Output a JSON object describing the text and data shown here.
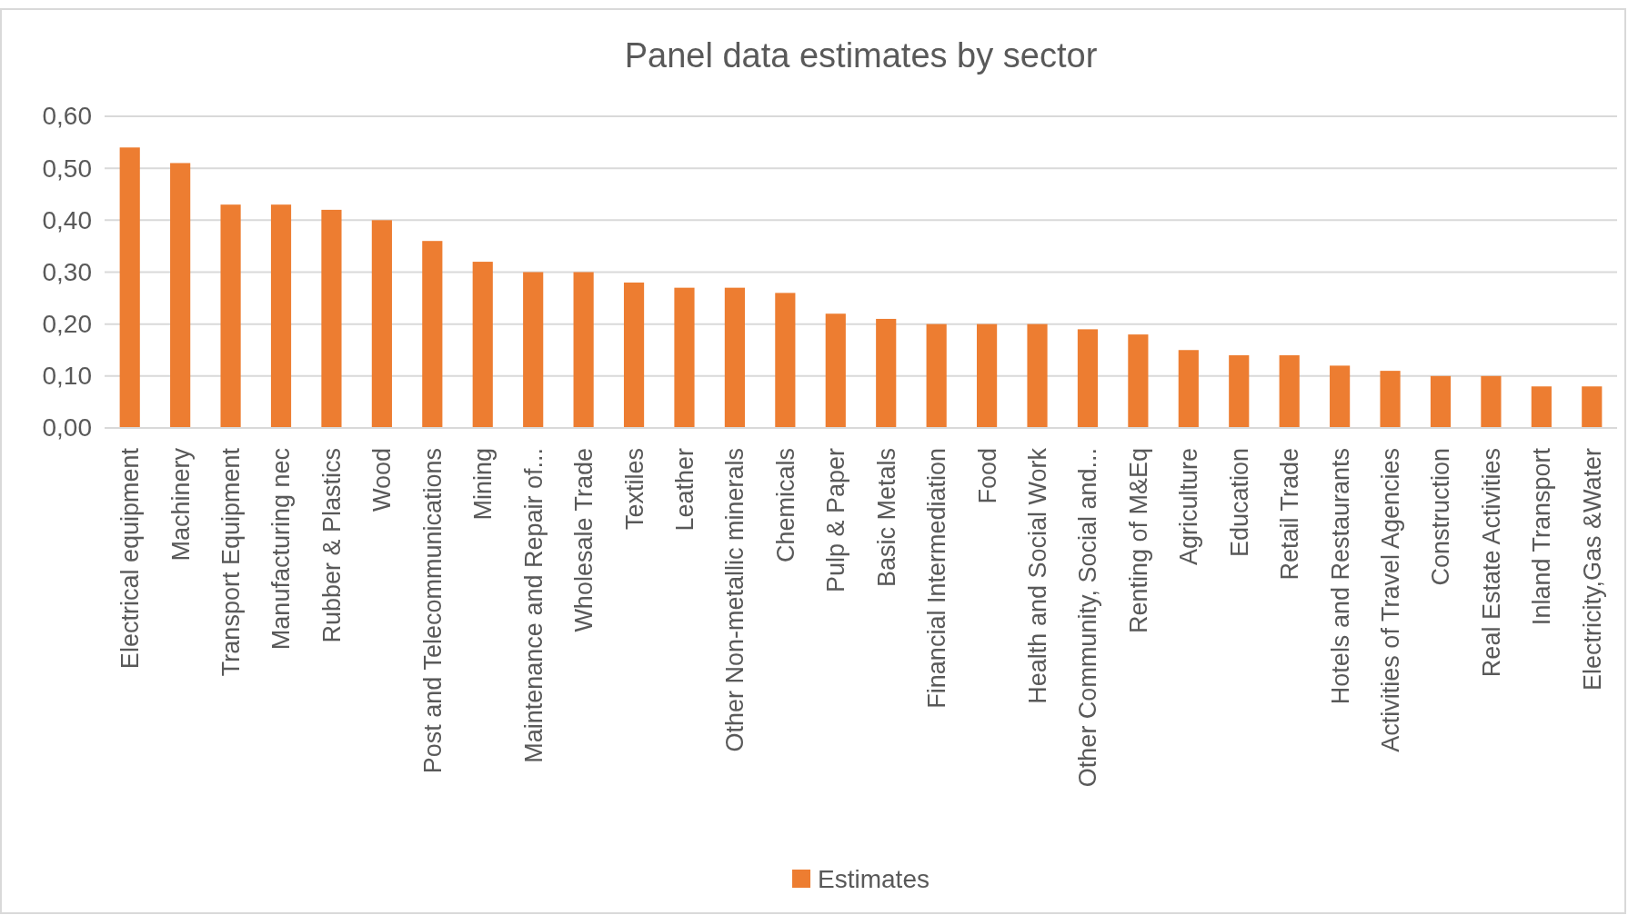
{
  "chart_data": {
    "type": "bar",
    "title": "Panel data estimates by sector",
    "categories": [
      "Electrical equipment",
      "Machinery",
      "Transport Equipment",
      "Manufacturing nec",
      "Rubber & Plastics",
      "Wood",
      "Post and Telecommunications",
      "Mining",
      "Maintenance and Repair of...",
      "Wholesale Trade",
      "Textiles",
      "Leather",
      "Other Non-metallic minerals",
      "Chemicals",
      "Pulp & Paper",
      "Basic Metals",
      "Financial Intermediation",
      "Food",
      "Health and Social Work",
      "Other Community, Social and...",
      "Renting of M&Eq",
      "Agriculture",
      "Education",
      "Retail Trade",
      "Hotels and Restaurants",
      "Activities of Travel Agencies",
      "Construction",
      "Real Estate Activities",
      "Inland Transport",
      "Electricity,Gas &Water"
    ],
    "series": [
      {
        "name": "Estimates",
        "color": "#ed7d31",
        "values": [
          0.54,
          0.51,
          0.43,
          0.43,
          0.42,
          0.4,
          0.36,
          0.32,
          0.3,
          0.3,
          0.28,
          0.27,
          0.27,
          0.26,
          0.22,
          0.21,
          0.2,
          0.2,
          0.2,
          0.19,
          0.18,
          0.15,
          0.14,
          0.14,
          0.12,
          0.11,
          0.1,
          0.1,
          0.08,
          0.08
        ]
      }
    ],
    "ylim": [
      0,
      0.6
    ],
    "yticks": [
      {
        "value": 0,
        "label": "0,00"
      },
      {
        "value": 0.1,
        "label": "0,10"
      },
      {
        "value": 0.2,
        "label": "0,20"
      },
      {
        "value": 0.3,
        "label": "0,30"
      },
      {
        "value": 0.4,
        "label": "0,40"
      },
      {
        "value": 0.5,
        "label": "0,50"
      },
      {
        "value": 0.6,
        "label": "0,60"
      }
    ],
    "grid": "y",
    "legend": "bottom"
  }
}
